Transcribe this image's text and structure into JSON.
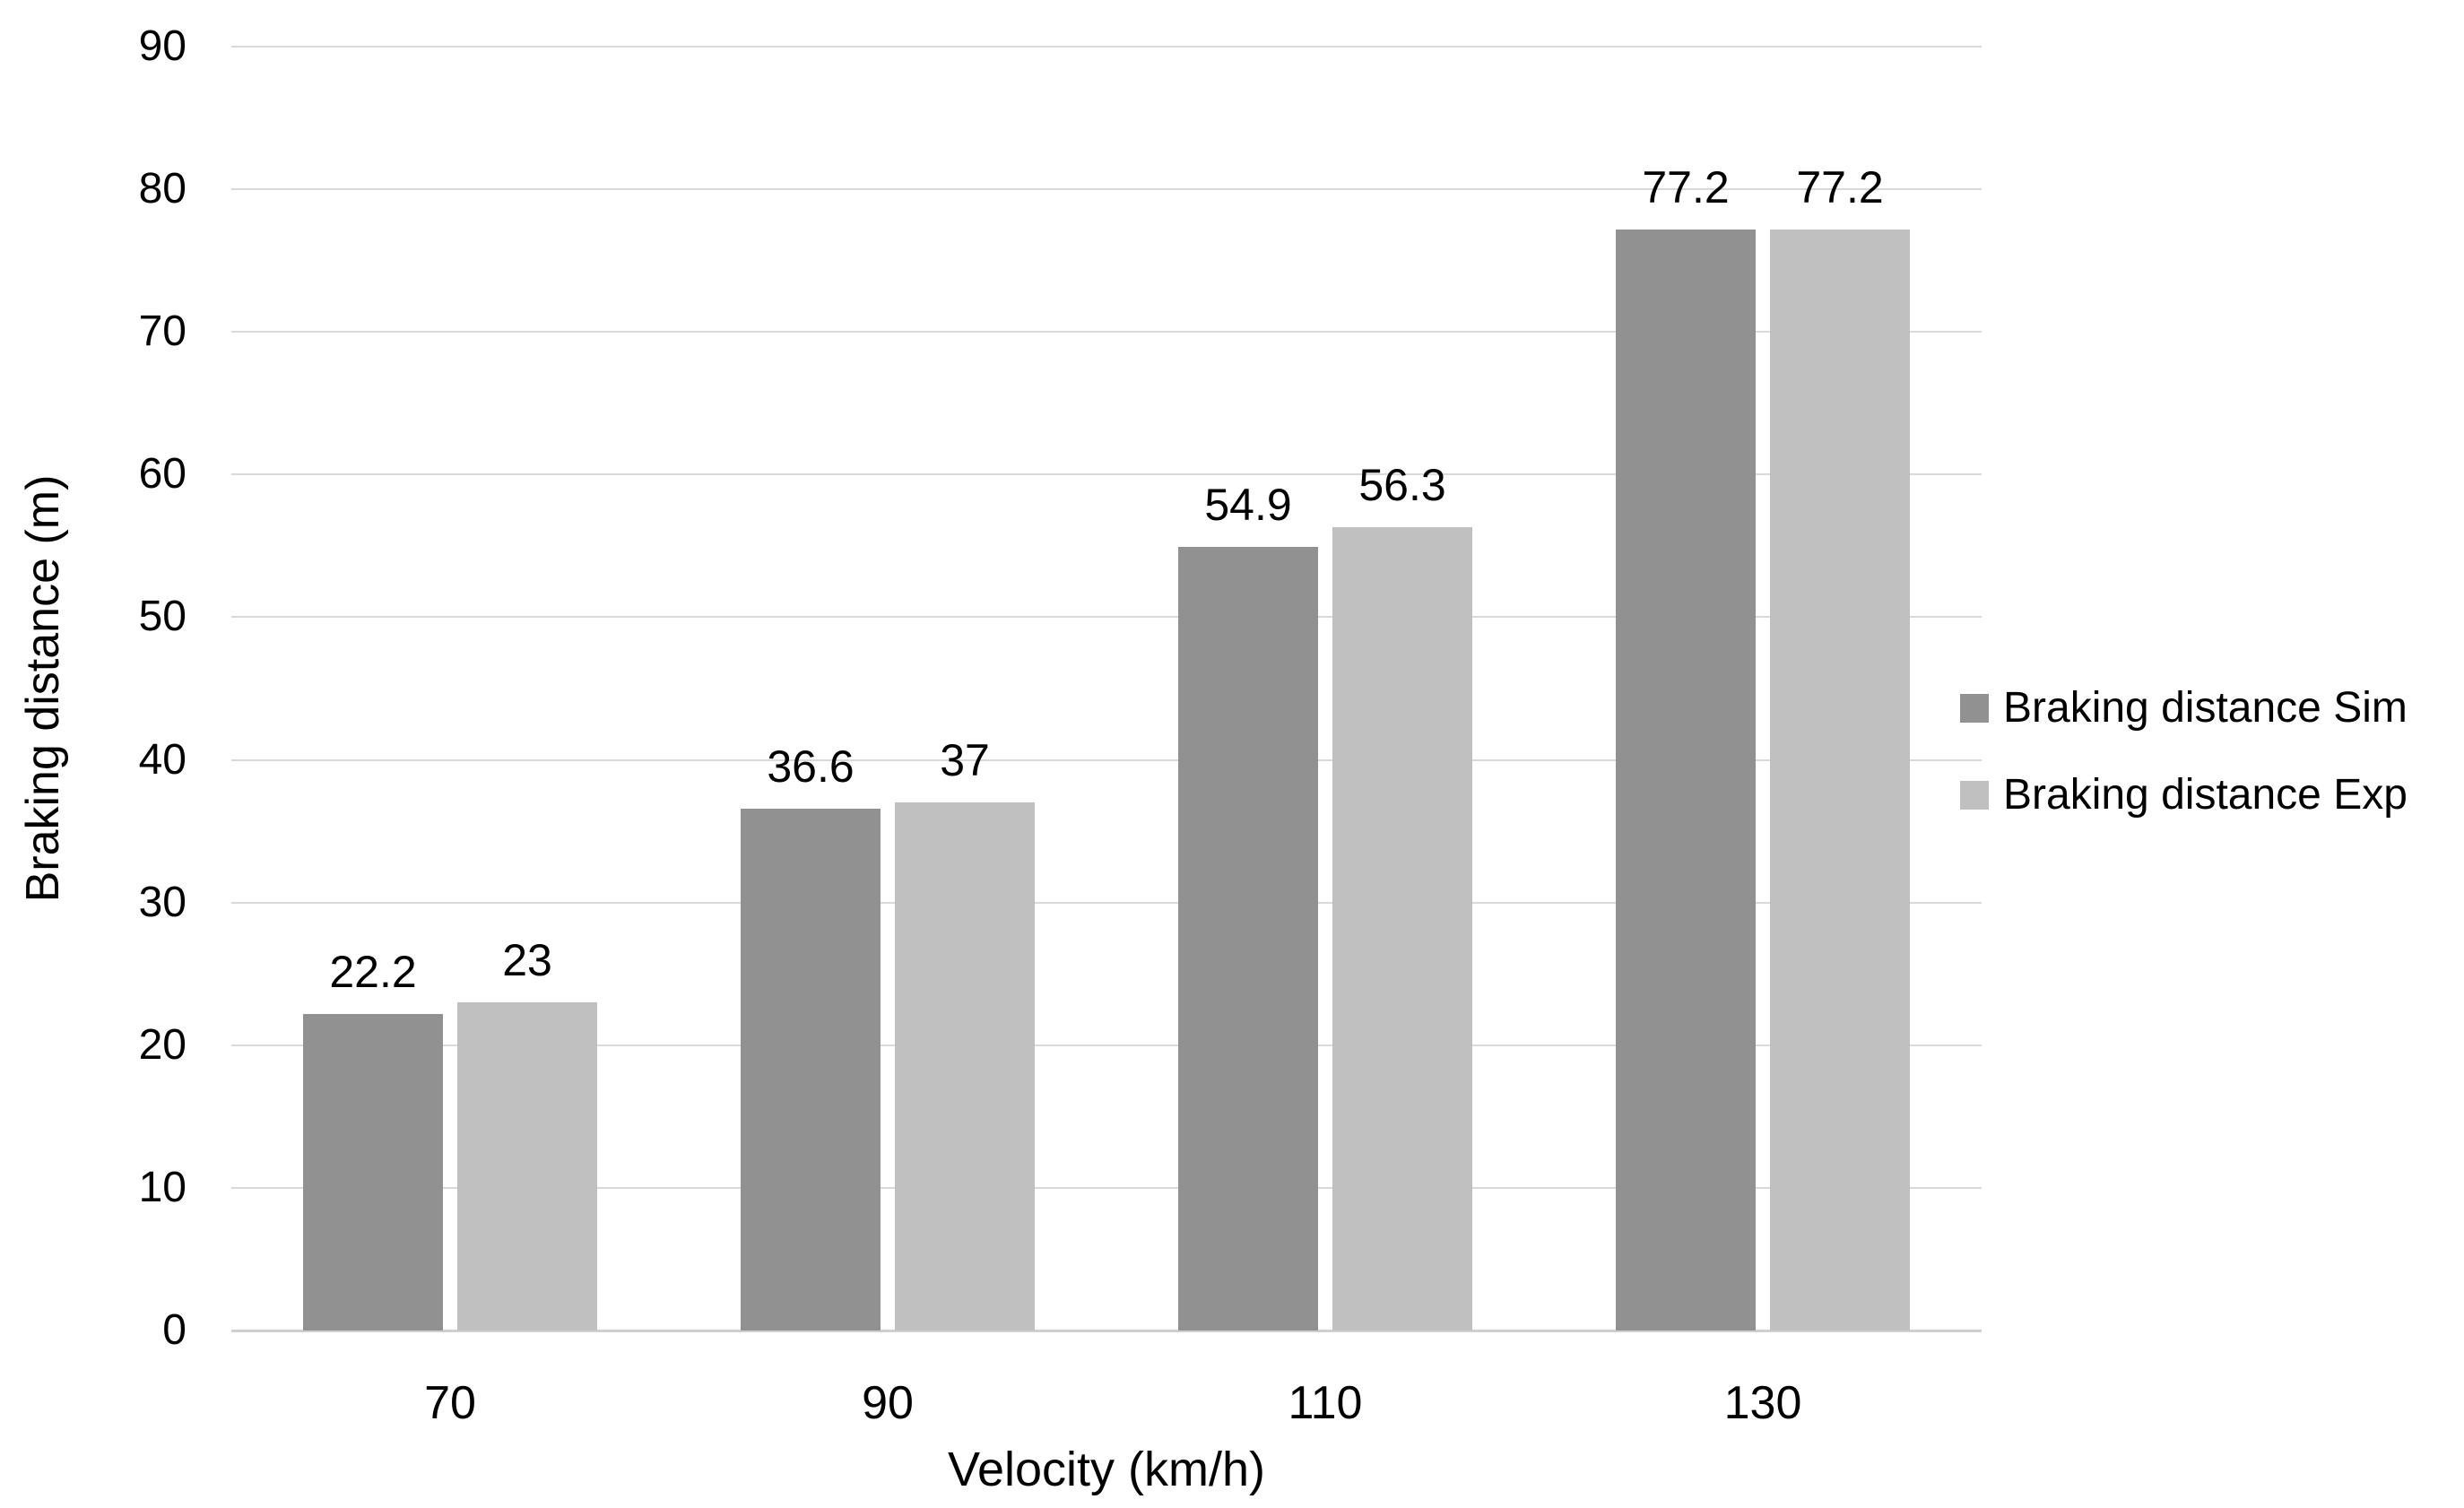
{
  "chart_data": {
    "type": "bar",
    "title": "",
    "xlabel": "Velocity (km/h)",
    "ylabel": "Braking distance (m)",
    "categories": [
      "70",
      "90",
      "110",
      "130"
    ],
    "series": [
      {
        "name": "Braking distance Sim",
        "color": "#919191",
        "values": [
          22.2,
          36.6,
          54.9,
          77.2
        ],
        "labels": [
          "22.2",
          "36.6",
          "54.9",
          "77.2"
        ]
      },
      {
        "name": "Braking distance Exp",
        "color": "#c0c0c0",
        "values": [
          23,
          37,
          56.3,
          77.2
        ],
        "labels": [
          "23",
          "37",
          "56.3",
          "77.2"
        ]
      }
    ],
    "y_axis": {
      "min": 0,
      "max": 90,
      "step": 10,
      "ticks": [
        0,
        10,
        20,
        30,
        40,
        50,
        60,
        70,
        80,
        90
      ]
    },
    "grid": true,
    "legend_position": "right",
    "colors": {
      "gridline": "#d9d9d9",
      "baseline": "#cfcfcf",
      "text": "#000000",
      "background": "#ffffff"
    }
  }
}
